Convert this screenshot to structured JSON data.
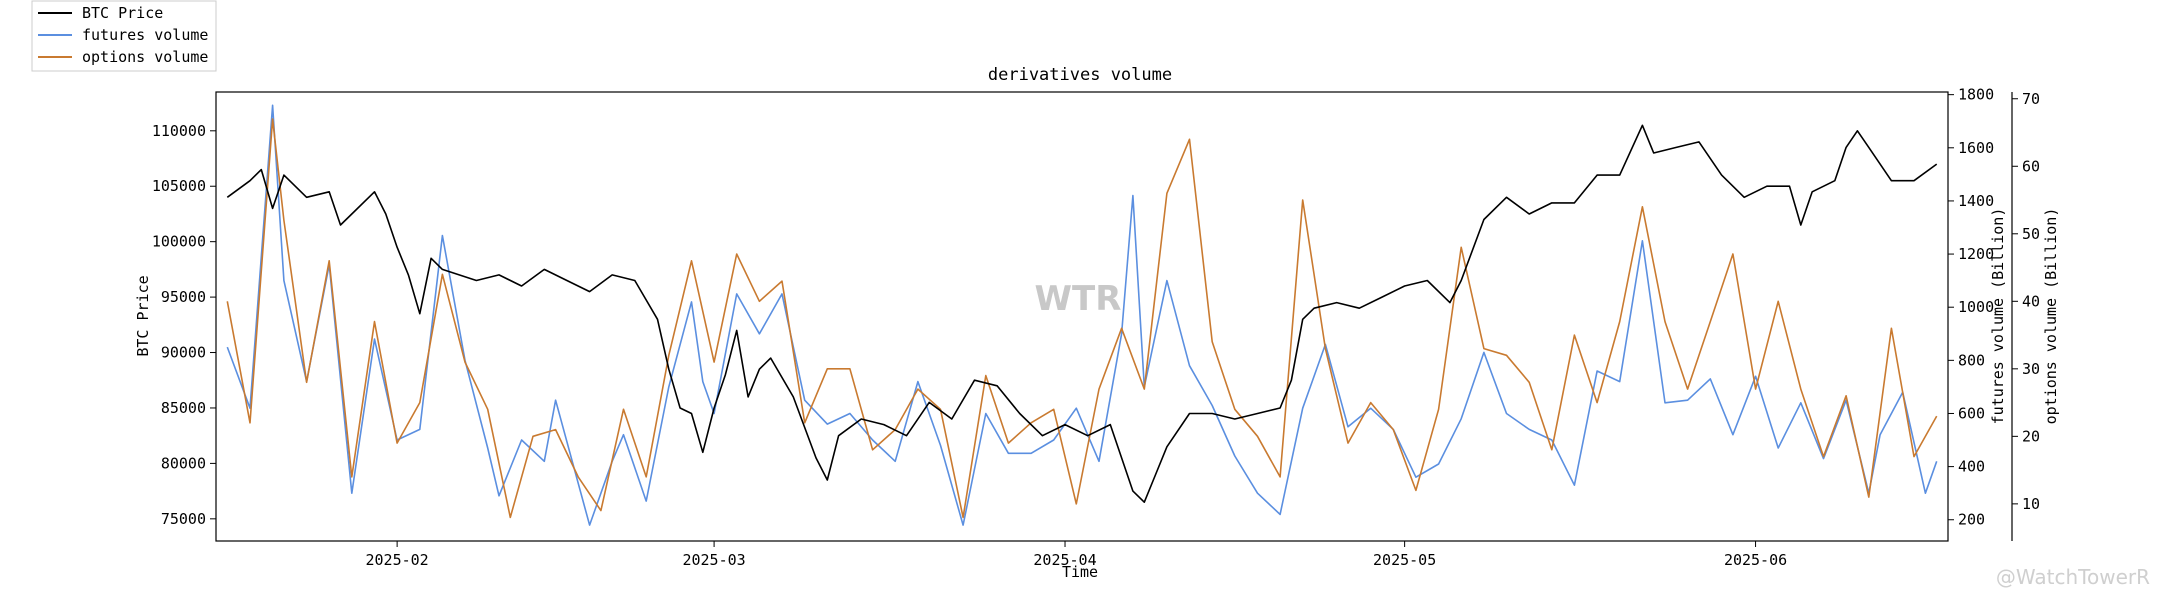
{
  "chart_data": {
    "type": "line",
    "title": "derivatives volume",
    "xlabel": "Time",
    "ylabel_left": "BTC Price",
    "ylabel_right1": "futures volume (Billion)",
    "ylabel_right2": "options volume (Billion)",
    "x_range": [
      "2025-01-16",
      "2025-06-18"
    ],
    "x_ticks": [
      "2025-02",
      "2025-03",
      "2025-04",
      "2025-05",
      "2025-06"
    ],
    "y_left_range": [
      73000,
      113500
    ],
    "y_left_ticks": [
      "75000",
      "80000",
      "85000",
      "90000",
      "95000",
      "100000",
      "105000",
      "110000"
    ],
    "y_right1_range": [
      120,
      1810
    ],
    "y_right1_ticks": [
      "200",
      "400",
      "600",
      "800",
      "1000",
      "1200",
      "1400",
      "1600",
      "1800"
    ],
    "y_right2_range": [
      4.5,
      71
    ],
    "y_right2_ticks": [
      "10",
      "20",
      "30",
      "40",
      "50",
      "60",
      "70"
    ],
    "legend_position": "top-left (outside plot)",
    "grid": false,
    "series": [
      {
        "name": "BTC Price",
        "axis": "left",
        "color": "#000000",
        "points": [
          [
            "2025-01-17",
            104000
          ],
          [
            "2025-01-19",
            105500
          ],
          [
            "2025-01-20",
            106500
          ],
          [
            "2025-01-21",
            103000
          ],
          [
            "2025-01-22",
            106000
          ],
          [
            "2025-01-24",
            104000
          ],
          [
            "2025-01-26",
            104500
          ],
          [
            "2025-01-27",
            101500
          ],
          [
            "2025-01-28",
            102500
          ],
          [
            "2025-01-30",
            104500
          ],
          [
            "2025-01-31",
            102500
          ],
          [
            "2025-02-01",
            99500
          ],
          [
            "2025-02-02",
            97000
          ],
          [
            "2025-02-03",
            93500
          ],
          [
            "2025-02-04",
            98500
          ],
          [
            "2025-02-05",
            97500
          ],
          [
            "2025-02-08",
            96500
          ],
          [
            "2025-02-10",
            97000
          ],
          [
            "2025-02-12",
            96000
          ],
          [
            "2025-02-14",
            97500
          ],
          [
            "2025-02-16",
            96500
          ],
          [
            "2025-02-18",
            95500
          ],
          [
            "2025-02-20",
            97000
          ],
          [
            "2025-02-22",
            96500
          ],
          [
            "2025-02-24",
            93000
          ],
          [
            "2025-02-25",
            88500
          ],
          [
            "2025-02-26",
            85000
          ],
          [
            "2025-02-27",
            84500
          ],
          [
            "2025-02-28",
            81000
          ],
          [
            "2025-03-01",
            85000
          ],
          [
            "2025-03-02",
            88000
          ],
          [
            "2025-03-03",
            92000
          ],
          [
            "2025-03-04",
            86000
          ],
          [
            "2025-03-05",
            88500
          ],
          [
            "2025-03-06",
            89500
          ],
          [
            "2025-03-08",
            86000
          ],
          [
            "2025-03-10",
            80500
          ],
          [
            "2025-03-11",
            78500
          ],
          [
            "2025-03-12",
            82500
          ],
          [
            "2025-03-14",
            84000
          ],
          [
            "2025-03-16",
            83500
          ],
          [
            "2025-03-18",
            82500
          ],
          [
            "2025-03-20",
            85500
          ],
          [
            "2025-03-22",
            84000
          ],
          [
            "2025-03-24",
            87500
          ],
          [
            "2025-03-26",
            87000
          ],
          [
            "2025-03-28",
            84500
          ],
          [
            "2025-03-30",
            82500
          ],
          [
            "2025-04-01",
            83500
          ],
          [
            "2025-04-03",
            82500
          ],
          [
            "2025-04-05",
            83500
          ],
          [
            "2025-04-07",
            77500
          ],
          [
            "2025-04-08",
            76500
          ],
          [
            "2025-04-09",
            79000
          ],
          [
            "2025-04-10",
            81500
          ],
          [
            "2025-04-12",
            84500
          ],
          [
            "2025-04-14",
            84500
          ],
          [
            "2025-04-16",
            84000
          ],
          [
            "2025-04-18",
            84500
          ],
          [
            "2025-04-20",
            85000
          ],
          [
            "2025-04-21",
            87500
          ],
          [
            "2025-04-22",
            93000
          ],
          [
            "2025-04-23",
            94000
          ],
          [
            "2025-04-25",
            94500
          ],
          [
            "2025-04-27",
            94000
          ],
          [
            "2025-04-29",
            95000
          ],
          [
            "2025-05-01",
            96000
          ],
          [
            "2025-05-03",
            96500
          ],
          [
            "2025-05-05",
            94500
          ],
          [
            "2025-05-06",
            96500
          ],
          [
            "2025-05-08",
            102000
          ],
          [
            "2025-05-10",
            104000
          ],
          [
            "2025-05-12",
            102500
          ],
          [
            "2025-05-14",
            103500
          ],
          [
            "2025-05-16",
            103500
          ],
          [
            "2025-05-18",
            106000
          ],
          [
            "2025-05-20",
            106000
          ],
          [
            "2025-05-22",
            110500
          ],
          [
            "2025-05-23",
            108000
          ],
          [
            "2025-05-25",
            108500
          ],
          [
            "2025-05-27",
            109000
          ],
          [
            "2025-05-29",
            106000
          ],
          [
            "2025-05-31",
            104000
          ],
          [
            "2025-06-02",
            105000
          ],
          [
            "2025-06-04",
            105000
          ],
          [
            "2025-06-05",
            101500
          ],
          [
            "2025-06-06",
            104500
          ],
          [
            "2025-06-08",
            105500
          ],
          [
            "2025-06-09",
            108500
          ],
          [
            "2025-06-10",
            110000
          ],
          [
            "2025-06-11",
            108500
          ],
          [
            "2025-06-13",
            105500
          ],
          [
            "2025-06-15",
            105500
          ],
          [
            "2025-06-17",
            107000
          ]
        ]
      },
      {
        "name": "futures volume",
        "axis": "right1",
        "color": "#5b8fe0",
        "points": [
          [
            "2025-01-17",
            850
          ],
          [
            "2025-01-19",
            620
          ],
          [
            "2025-01-21",
            1760
          ],
          [
            "2025-01-22",
            1100
          ],
          [
            "2025-01-24",
            720
          ],
          [
            "2025-01-26",
            1160
          ],
          [
            "2025-01-28",
            300
          ],
          [
            "2025-01-30",
            880
          ],
          [
            "2025-02-01",
            500
          ],
          [
            "2025-02-03",
            540
          ],
          [
            "2025-02-05",
            1270
          ],
          [
            "2025-02-07",
            800
          ],
          [
            "2025-02-09",
            470
          ],
          [
            "2025-02-10",
            290
          ],
          [
            "2025-02-12",
            500
          ],
          [
            "2025-02-14",
            420
          ],
          [
            "2025-02-15",
            650
          ],
          [
            "2025-02-18",
            180
          ],
          [
            "2025-02-20",
            420
          ],
          [
            "2025-02-21",
            520
          ],
          [
            "2025-02-23",
            270
          ],
          [
            "2025-02-25",
            700
          ],
          [
            "2025-02-27",
            1020
          ],
          [
            "2025-02-28",
            720
          ],
          [
            "2025-03-01",
            600
          ],
          [
            "2025-03-03",
            1050
          ],
          [
            "2025-03-05",
            900
          ],
          [
            "2025-03-07",
            1050
          ],
          [
            "2025-03-09",
            650
          ],
          [
            "2025-03-11",
            560
          ],
          [
            "2025-03-13",
            600
          ],
          [
            "2025-03-15",
            500
          ],
          [
            "2025-03-17",
            420
          ],
          [
            "2025-03-19",
            720
          ],
          [
            "2025-03-21",
            480
          ],
          [
            "2025-03-23",
            180
          ],
          [
            "2025-03-25",
            600
          ],
          [
            "2025-03-27",
            450
          ],
          [
            "2025-03-29",
            450
          ],
          [
            "2025-03-31",
            500
          ],
          [
            "2025-04-02",
            620
          ],
          [
            "2025-04-04",
            420
          ],
          [
            "2025-04-06",
            900
          ],
          [
            "2025-04-07",
            1420
          ],
          [
            "2025-04-08",
            700
          ],
          [
            "2025-04-10",
            1100
          ],
          [
            "2025-04-12",
            780
          ],
          [
            "2025-04-14",
            630
          ],
          [
            "2025-04-16",
            440
          ],
          [
            "2025-04-18",
            300
          ],
          [
            "2025-04-20",
            220
          ],
          [
            "2025-04-22",
            620
          ],
          [
            "2025-04-24",
            860
          ],
          [
            "2025-04-26",
            550
          ],
          [
            "2025-04-28",
            620
          ],
          [
            "2025-04-30",
            540
          ],
          [
            "2025-05-02",
            360
          ],
          [
            "2025-05-04",
            410
          ],
          [
            "2025-05-06",
            580
          ],
          [
            "2025-05-08",
            830
          ],
          [
            "2025-05-10",
            600
          ],
          [
            "2025-05-12",
            540
          ],
          [
            "2025-05-14",
            500
          ],
          [
            "2025-05-16",
            330
          ],
          [
            "2025-05-18",
            760
          ],
          [
            "2025-05-20",
            720
          ],
          [
            "2025-05-22",
            1250
          ],
          [
            "2025-05-24",
            640
          ],
          [
            "2025-05-26",
            650
          ],
          [
            "2025-05-28",
            730
          ],
          [
            "2025-05-30",
            520
          ],
          [
            "2025-06-01",
            740
          ],
          [
            "2025-06-03",
            470
          ],
          [
            "2025-06-05",
            640
          ],
          [
            "2025-06-07",
            430
          ],
          [
            "2025-06-09",
            650
          ],
          [
            "2025-06-11",
            300
          ],
          [
            "2025-06-12",
            520
          ],
          [
            "2025-06-14",
            680
          ],
          [
            "2025-06-16",
            300
          ],
          [
            "2025-06-17",
            420
          ]
        ]
      },
      {
        "name": "options volume",
        "axis": "right2",
        "color": "#c97a30",
        "points": [
          [
            "2025-01-17",
            40
          ],
          [
            "2025-01-19",
            22
          ],
          [
            "2025-01-21",
            67
          ],
          [
            "2025-01-22",
            52
          ],
          [
            "2025-01-24",
            28
          ],
          [
            "2025-01-26",
            46
          ],
          [
            "2025-01-28",
            14
          ],
          [
            "2025-01-30",
            37
          ],
          [
            "2025-02-01",
            19
          ],
          [
            "2025-02-03",
            25
          ],
          [
            "2025-02-05",
            44
          ],
          [
            "2025-02-07",
            31
          ],
          [
            "2025-02-09",
            24
          ],
          [
            "2025-02-11",
            8
          ],
          [
            "2025-02-13",
            20
          ],
          [
            "2025-02-15",
            21
          ],
          [
            "2025-02-17",
            14
          ],
          [
            "2025-02-19",
            9
          ],
          [
            "2025-02-21",
            24
          ],
          [
            "2025-02-23",
            14
          ],
          [
            "2025-02-25",
            32
          ],
          [
            "2025-02-27",
            46
          ],
          [
            "2025-03-01",
            31
          ],
          [
            "2025-03-03",
            47
          ],
          [
            "2025-03-05",
            40
          ],
          [
            "2025-03-07",
            43
          ],
          [
            "2025-03-09",
            22
          ],
          [
            "2025-03-11",
            30
          ],
          [
            "2025-03-13",
            30
          ],
          [
            "2025-03-15",
            18
          ],
          [
            "2025-03-17",
            21
          ],
          [
            "2025-03-19",
            27
          ],
          [
            "2025-03-21",
            24
          ],
          [
            "2025-03-23",
            8
          ],
          [
            "2025-03-25",
            29
          ],
          [
            "2025-03-27",
            19
          ],
          [
            "2025-03-29",
            22
          ],
          [
            "2025-03-31",
            24
          ],
          [
            "2025-04-02",
            10
          ],
          [
            "2025-04-04",
            27
          ],
          [
            "2025-04-06",
            36
          ],
          [
            "2025-04-08",
            27
          ],
          [
            "2025-04-10",
            56
          ],
          [
            "2025-04-12",
            64
          ],
          [
            "2025-04-14",
            34
          ],
          [
            "2025-04-16",
            24
          ],
          [
            "2025-04-18",
            20
          ],
          [
            "2025-04-20",
            14
          ],
          [
            "2025-04-22",
            55
          ],
          [
            "2025-04-24",
            33
          ],
          [
            "2025-04-26",
            19
          ],
          [
            "2025-04-28",
            25
          ],
          [
            "2025-04-30",
            21
          ],
          [
            "2025-05-02",
            12
          ],
          [
            "2025-05-04",
            24
          ],
          [
            "2025-05-06",
            48
          ],
          [
            "2025-05-08",
            33
          ],
          [
            "2025-05-10",
            32
          ],
          [
            "2025-05-12",
            28
          ],
          [
            "2025-05-14",
            18
          ],
          [
            "2025-05-16",
            35
          ],
          [
            "2025-05-18",
            25
          ],
          [
            "2025-05-20",
            37
          ],
          [
            "2025-05-22",
            54
          ],
          [
            "2025-05-24",
            37
          ],
          [
            "2025-05-26",
            27
          ],
          [
            "2025-05-28",
            37
          ],
          [
            "2025-05-30",
            47
          ],
          [
            "2025-06-01",
            27
          ],
          [
            "2025-06-03",
            40
          ],
          [
            "2025-06-05",
            27
          ],
          [
            "2025-06-07",
            17
          ],
          [
            "2025-06-09",
            26
          ],
          [
            "2025-06-11",
            11
          ],
          [
            "2025-06-13",
            36
          ],
          [
            "2025-06-15",
            17
          ],
          [
            "2025-06-17",
            23
          ]
        ]
      }
    ]
  },
  "watermarks": {
    "center": "WTR",
    "corner": "@WatchTowerR"
  }
}
